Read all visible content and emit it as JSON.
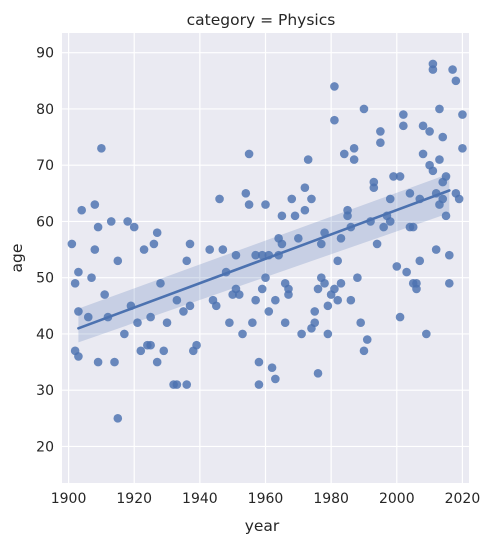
{
  "chart_data": {
    "type": "scatter",
    "title": "category = Physics",
    "xlabel": "year",
    "ylabel": "age",
    "xlim": [
      1898,
      2022
    ],
    "ylim": [
      13.5,
      93.5
    ],
    "x_ticks": [
      1900,
      1920,
      1940,
      1960,
      1980,
      2000,
      2020
    ],
    "y_ticks": [
      20,
      30,
      40,
      50,
      60,
      70,
      80,
      90
    ],
    "grid": true,
    "colors": {
      "marker": "#4c72b0",
      "background": "#eaeaf2",
      "grid": "#ffffff"
    },
    "regression": {
      "x": [
        1903,
        2016
      ],
      "y": [
        41,
        65.5
      ],
      "ci_lower": [
        38.5,
        61.5
      ],
      "ci_upper": [
        44.5,
        68.5
      ]
    },
    "series": [
      {
        "points": [
          [
            1901,
            56
          ],
          [
            1902,
            49
          ],
          [
            1902,
            37
          ],
          [
            1903,
            51
          ],
          [
            1903,
            44
          ],
          [
            1903,
            36
          ],
          [
            1904,
            62
          ],
          [
            1906,
            43
          ],
          [
            1907,
            50
          ],
          [
            1908,
            55
          ],
          [
            1908,
            63
          ],
          [
            1909,
            35
          ],
          [
            1909,
            59
          ],
          [
            1910,
            73
          ],
          [
            1911,
            47
          ],
          [
            1912,
            43
          ],
          [
            1913,
            60
          ],
          [
            1914,
            35
          ],
          [
            1915,
            53
          ],
          [
            1915,
            25
          ],
          [
            1917,
            40
          ],
          [
            1918,
            60
          ],
          [
            1919,
            45
          ],
          [
            1920,
            59
          ],
          [
            1921,
            42
          ],
          [
            1922,
            37
          ],
          [
            1923,
            55
          ],
          [
            1924,
            38
          ],
          [
            1925,
            38
          ],
          [
            1925,
            43
          ],
          [
            1926,
            56
          ],
          [
            1927,
            58
          ],
          [
            1927,
            35
          ],
          [
            1928,
            49
          ],
          [
            1929,
            37
          ],
          [
            1930,
            42
          ],
          [
            1932,
            31
          ],
          [
            1933,
            31
          ],
          [
            1933,
            46
          ],
          [
            1935,
            44
          ],
          [
            1936,
            53
          ],
          [
            1936,
            31
          ],
          [
            1937,
            56
          ],
          [
            1937,
            45
          ],
          [
            1938,
            37
          ],
          [
            1939,
            38
          ],
          [
            1943,
            55
          ],
          [
            1944,
            46
          ],
          [
            1945,
            45
          ],
          [
            1946,
            64
          ],
          [
            1947,
            55
          ],
          [
            1948,
            51
          ],
          [
            1949,
            42
          ],
          [
            1950,
            47
          ],
          [
            1951,
            48
          ],
          [
            1951,
            54
          ],
          [
            1952,
            47
          ],
          [
            1953,
            40
          ],
          [
            1954,
            65
          ],
          [
            1955,
            72
          ],
          [
            1955,
            63
          ],
          [
            1956,
            42
          ],
          [
            1957,
            46
          ],
          [
            1957,
            54
          ],
          [
            1958,
            31
          ],
          [
            1958,
            35
          ],
          [
            1959,
            48
          ],
          [
            1959,
            54
          ],
          [
            1960,
            63
          ],
          [
            1960,
            50
          ],
          [
            1961,
            54
          ],
          [
            1961,
            44
          ],
          [
            1962,
            34
          ],
          [
            1963,
            46
          ],
          [
            1963,
            32
          ],
          [
            1964,
            54
          ],
          [
            1964,
            57
          ],
          [
            1965,
            61
          ],
          [
            1965,
            56
          ],
          [
            1966,
            49
          ],
          [
            1966,
            42
          ],
          [
            1967,
            47
          ],
          [
            1967,
            48
          ],
          [
            1968,
            64
          ],
          [
            1969,
            61
          ],
          [
            1970,
            57
          ],
          [
            1971,
            40
          ],
          [
            1972,
            62
          ],
          [
            1972,
            66
          ],
          [
            1973,
            71
          ],
          [
            1974,
            64
          ],
          [
            1974,
            41
          ],
          [
            1975,
            42
          ],
          [
            1975,
            44
          ],
          [
            1976,
            33
          ],
          [
            1976,
            48
          ],
          [
            1977,
            56
          ],
          [
            1977,
            50
          ],
          [
            1978,
            58
          ],
          [
            1978,
            49
          ],
          [
            1979,
            40
          ],
          [
            1979,
            45
          ],
          [
            1980,
            47
          ],
          [
            1981,
            48
          ],
          [
            1981,
            84
          ],
          [
            1981,
            78
          ],
          [
            1982,
            53
          ],
          [
            1982,
            46
          ],
          [
            1983,
            57
          ],
          [
            1983,
            49
          ],
          [
            1984,
            72
          ],
          [
            1985,
            62
          ],
          [
            1985,
            61
          ],
          [
            1986,
            59
          ],
          [
            1986,
            46
          ],
          [
            1987,
            73
          ],
          [
            1987,
            71
          ],
          [
            1988,
            50
          ],
          [
            1989,
            42
          ],
          [
            1990,
            80
          ],
          [
            1990,
            37
          ],
          [
            1991,
            39
          ],
          [
            1992,
            60
          ],
          [
            1993,
            66
          ],
          [
            1993,
            67
          ],
          [
            1994,
            56
          ],
          [
            1995,
            74
          ],
          [
            1995,
            76
          ],
          [
            1996,
            59
          ],
          [
            1997,
            61
          ],
          [
            1998,
            64
          ],
          [
            1998,
            60
          ],
          [
            1999,
            68
          ],
          [
            2000,
            52
          ],
          [
            2001,
            43
          ],
          [
            2001,
            68
          ],
          [
            2002,
            79
          ],
          [
            2002,
            77
          ],
          [
            2003,
            51
          ],
          [
            2004,
            65
          ],
          [
            2004,
            59
          ],
          [
            2005,
            49
          ],
          [
            2005,
            59
          ],
          [
            2006,
            48
          ],
          [
            2006,
            49
          ],
          [
            2007,
            53
          ],
          [
            2007,
            64
          ],
          [
            2008,
            77
          ],
          [
            2008,
            72
          ],
          [
            2009,
            40
          ],
          [
            2010,
            70
          ],
          [
            2010,
            76
          ],
          [
            2011,
            88
          ],
          [
            2011,
            87
          ],
          [
            2011,
            69
          ],
          [
            2012,
            65
          ],
          [
            2012,
            55
          ],
          [
            2013,
            80
          ],
          [
            2013,
            63
          ],
          [
            2013,
            71
          ],
          [
            2014,
            64
          ],
          [
            2014,
            67
          ],
          [
            2014,
            75
          ],
          [
            2015,
            61
          ],
          [
            2015,
            68
          ],
          [
            2016,
            54
          ],
          [
            2016,
            49
          ],
          [
            2017,
            87
          ],
          [
            2018,
            65
          ],
          [
            2018,
            85
          ],
          [
            2019,
            64
          ],
          [
            2020,
            79
          ],
          [
            2020,
            73
          ]
        ]
      }
    ]
  }
}
